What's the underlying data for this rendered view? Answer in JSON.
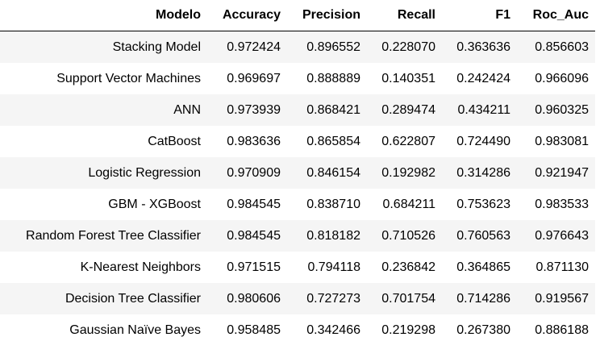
{
  "table": {
    "header": [
      "Modelo",
      "Accuracy",
      "Precision",
      "Recall",
      "F1",
      "Roc_Auc"
    ],
    "rows": [
      [
        "Stacking Model",
        "0.972424",
        "0.896552",
        "0.228070",
        "0.363636",
        "0.856603"
      ],
      [
        "Support Vector Machines",
        "0.969697",
        "0.888889",
        "0.140351",
        "0.242424",
        "0.966096"
      ],
      [
        "ANN",
        "0.973939",
        "0.868421",
        "0.289474",
        "0.434211",
        "0.960325"
      ],
      [
        "CatBoost",
        "0.983636",
        "0.865854",
        "0.622807",
        "0.724490",
        "0.983081"
      ],
      [
        "Logistic Regression",
        "0.970909",
        "0.846154",
        "0.192982",
        "0.314286",
        "0.921947"
      ],
      [
        "GBM - XGBoost",
        "0.984545",
        "0.838710",
        "0.684211",
        "0.753623",
        "0.983533"
      ],
      [
        "Random Forest Tree Classifier",
        "0.984545",
        "0.818182",
        "0.710526",
        "0.760563",
        "0.976643"
      ],
      [
        "K-Nearest Neighbors",
        "0.971515",
        "0.794118",
        "0.236842",
        "0.364865",
        "0.871130"
      ],
      [
        "Decision Tree Classifier",
        "0.980606",
        "0.727273",
        "0.701754",
        "0.714286",
        "0.919567"
      ],
      [
        "Gaussian Naïve Bayes",
        "0.958485",
        "0.342466",
        "0.219298",
        "0.267380",
        "0.886188"
      ]
    ]
  }
}
